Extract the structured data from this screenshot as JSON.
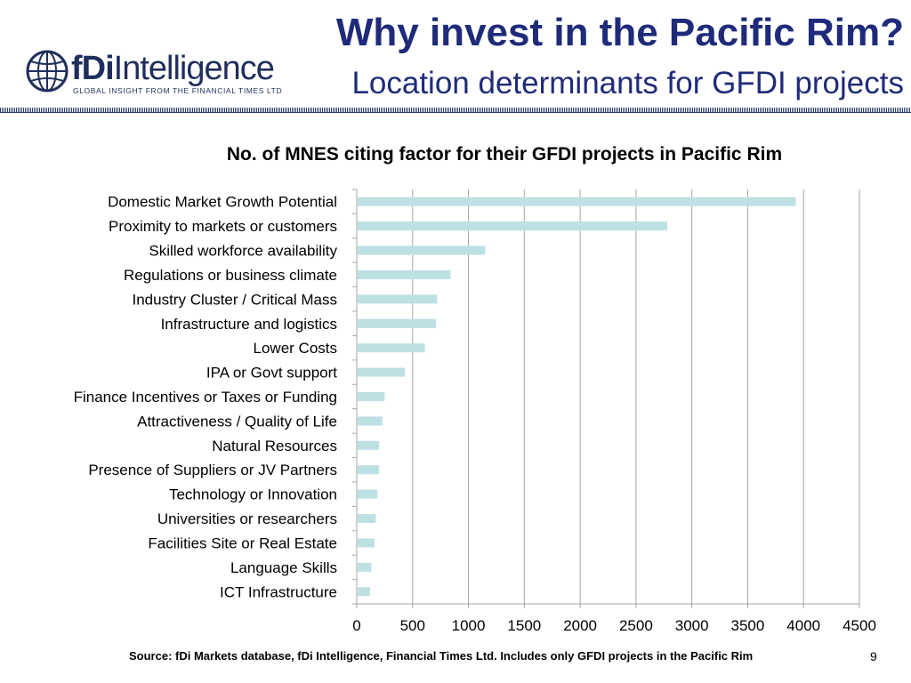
{
  "logo": {
    "brand_bold": "fDi",
    "brand_light": "Intelligence",
    "tagline": "GLOBAL INSIGHT FROM THE FINANCIAL TIMES LTD"
  },
  "header": {
    "title": "Why invest in the Pacific Rim?",
    "subtitle": "Location determinants for GFDI projects"
  },
  "colors": {
    "title": "#1f2b7a",
    "bar": "#bde0e3",
    "grid": "#a6a6a6"
  },
  "chart_data": {
    "type": "bar",
    "orientation": "horizontal",
    "title": "No. of MNES citing factor for their GFDI projects in Pacific Rim",
    "xlabel": "",
    "ylabel": "",
    "xlim": [
      0,
      4500
    ],
    "xticks": [
      0,
      500,
      1000,
      1500,
      2000,
      2500,
      3000,
      3500,
      4000,
      4500
    ],
    "grid": true,
    "categories": [
      "Domestic Market Growth Potential",
      "Proximity to markets or customers",
      "Skilled workforce availability",
      "Regulations or business climate",
      "Industry Cluster / Critical Mass",
      "Infrastructure and logistics",
      "Lower Costs",
      "IPA or Govt support",
      "Finance Incentives or Taxes or Funding",
      "Attractiveness / Quality of Life",
      "Natural Resources",
      "Presence of Suppliers or JV Partners",
      "Technology or Innovation",
      "Universities or researchers",
      "Facilities Site or Real Estate",
      "Language Skills",
      "ICT Infrastructure"
    ],
    "values": [
      3930,
      2780,
      1150,
      840,
      720,
      710,
      610,
      430,
      250,
      230,
      200,
      200,
      185,
      170,
      160,
      130,
      120
    ]
  },
  "footer": {
    "source": "Source: fDi Markets database, fDi Intelligence, Financial Times Ltd. Includes only GFDI projects in the Pacific Rim",
    "page_number": "9"
  }
}
